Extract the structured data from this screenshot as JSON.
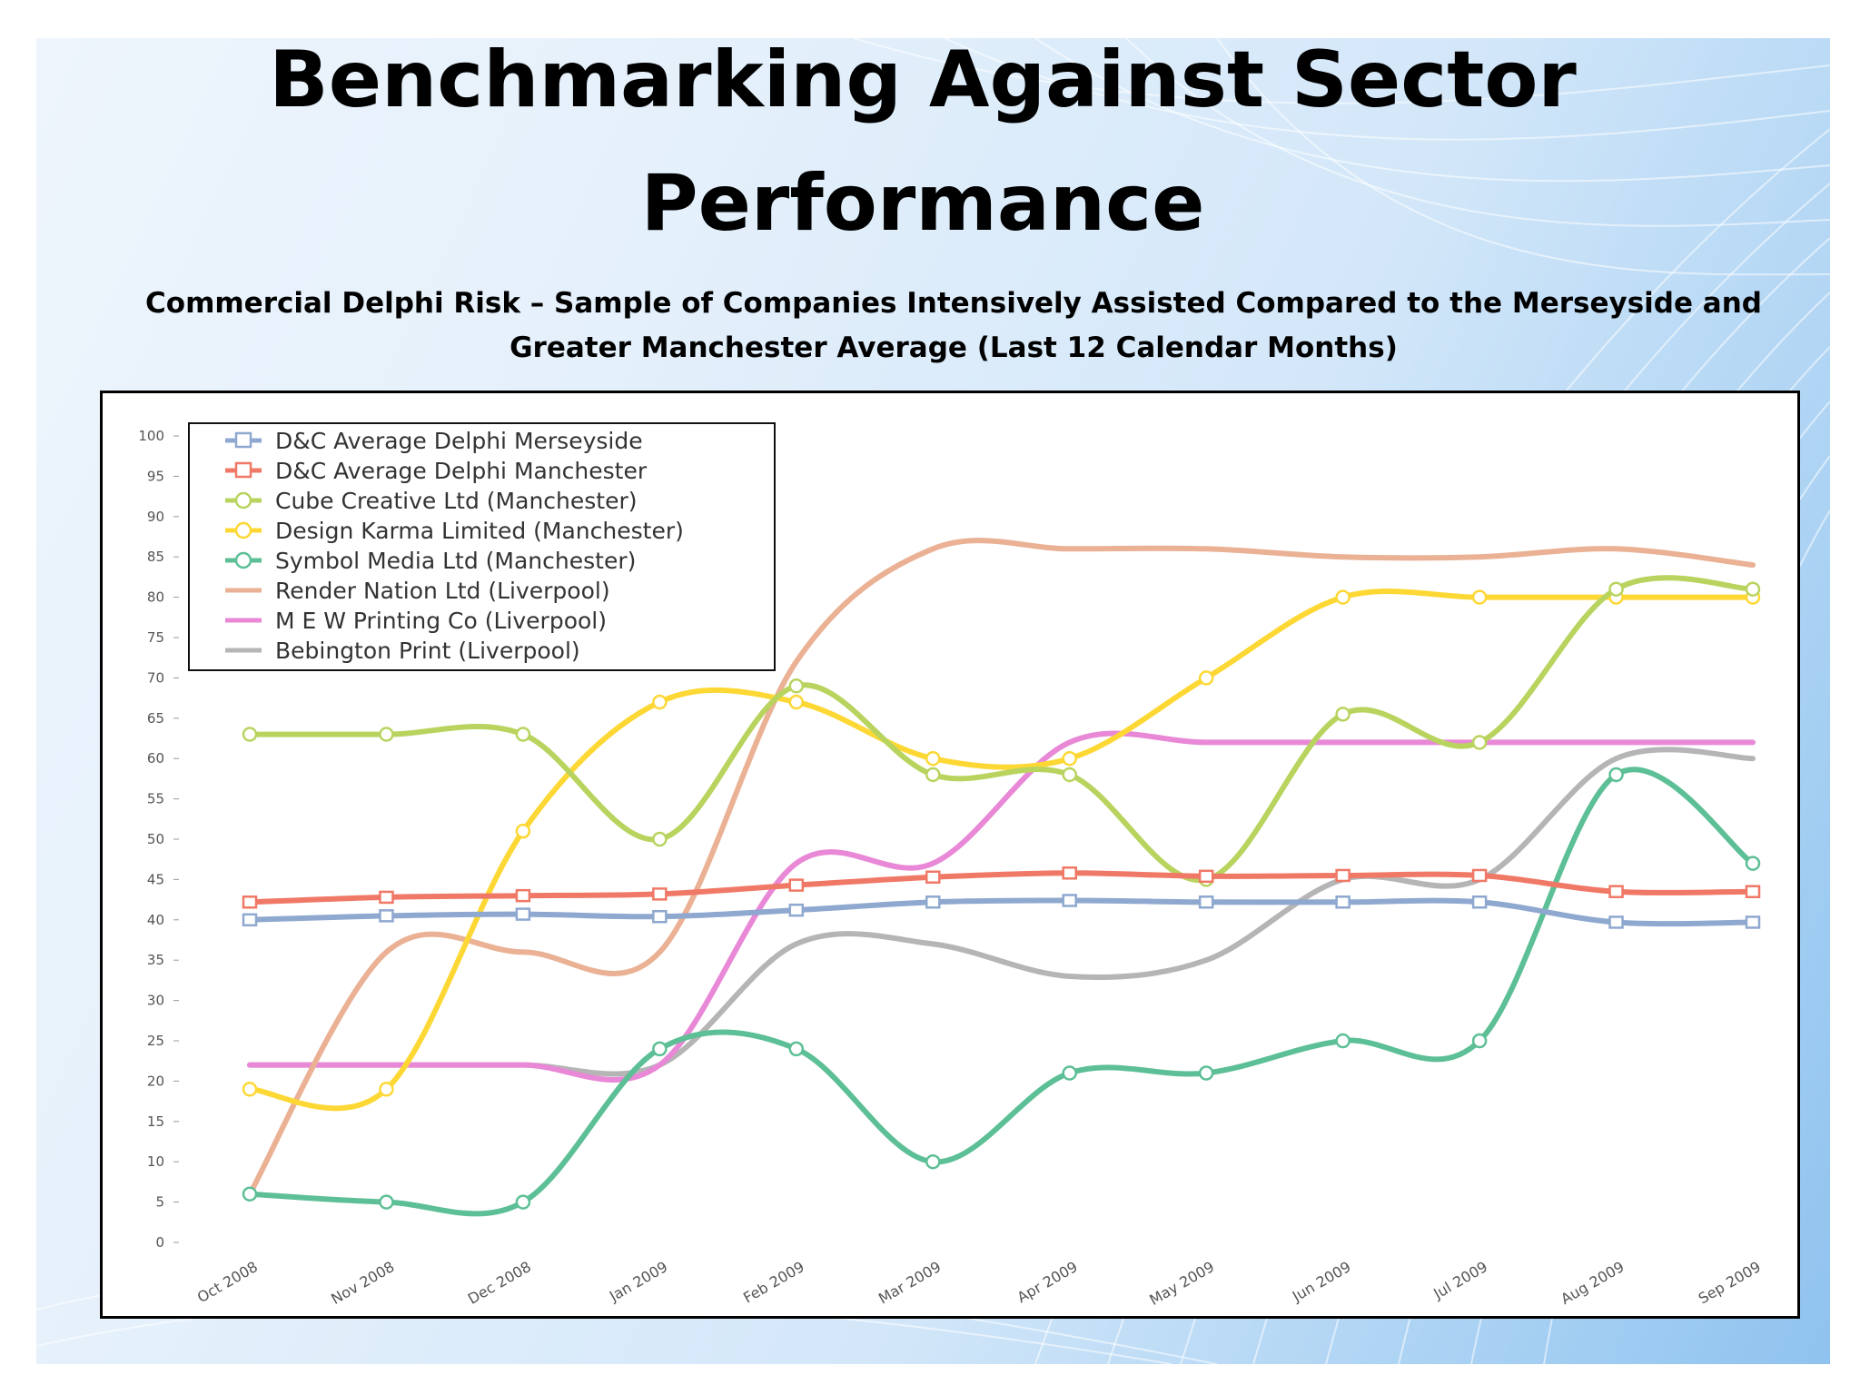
{
  "slide": {
    "title": "Benchmarking Against Sector Performance",
    "subtitle": "Commercial Delphi Risk – Sample of Companies Intensively Assisted Compared to the Merseyside and Greater Manchester Average (Last 12 Calendar Months)"
  },
  "chart_data": {
    "type": "line",
    "categories": [
      "Oct 2008",
      "Nov 2008",
      "Dec 2008",
      "Jan 2009",
      "Feb 2009",
      "Mar 2009",
      "Apr 2009",
      "May 2009",
      "Jun 2009",
      "Jul 2009",
      "Aug 2009",
      "Sep 2009"
    ],
    "ylim": [
      0,
      100
    ],
    "yticks": [
      0,
      5,
      10,
      15,
      20,
      25,
      30,
      35,
      40,
      45,
      50,
      55,
      60,
      65,
      70,
      75,
      80,
      85,
      90,
      95,
      100
    ],
    "grid": false,
    "legend_position": "top-left",
    "smooth": true,
    "series": [
      {
        "name": "D&C Average Delphi Merseyside",
        "color": "#8fa8cf",
        "marker": "square",
        "values": [
          40,
          40.5,
          40.7,
          40.4,
          41.2,
          42.2,
          42.4,
          42.2,
          42.2,
          42.2,
          39.7,
          39.7
        ]
      },
      {
        "name": "D&C Average Delphi Manchester",
        "color": "#f07866",
        "marker": "square",
        "values": [
          42.2,
          42.8,
          43,
          43.2,
          44.3,
          45.3,
          45.8,
          45.4,
          45.5,
          45.5,
          43.5,
          43.5
        ]
      },
      {
        "name": "Cube Creative Ltd (Manchester)",
        "color": "#b8d45e",
        "marker": "circle",
        "values": [
          63,
          63,
          63,
          50,
          69,
          58,
          58,
          45,
          65.5,
          62,
          81,
          81
        ]
      },
      {
        "name": "Design Karma Limited (Manchester)",
        "color": "#fdd835",
        "marker": "circle",
        "values": [
          19,
          19,
          51,
          67,
          67,
          60,
          60,
          70,
          80,
          80,
          80,
          80
        ]
      },
      {
        "name": "Symbol Media Ltd (Manchester)",
        "color": "#5cbf95",
        "marker": "circle",
        "values": [
          6,
          5,
          5,
          24,
          24,
          10,
          21,
          21,
          25,
          25,
          58,
          47
        ]
      },
      {
        "name": "Render Nation Ltd (Liverpool)",
        "color": "#eab194",
        "marker": "none",
        "values": [
          6,
          36,
          36,
          36,
          72,
          86,
          86,
          86,
          85,
          85,
          86,
          84
        ]
      },
      {
        "name": "M E W Printing Co (Liverpool)",
        "color": "#e888d6",
        "marker": "none",
        "values": [
          22,
          22,
          22,
          22,
          47,
          47,
          62,
          62,
          62,
          62,
          62,
          62
        ]
      },
      {
        "name": "Bebington Print (Liverpool)",
        "color": "#b5b5b5",
        "marker": "none",
        "values": [
          22,
          22,
          22,
          22,
          37,
          37,
          33,
          35,
          45,
          45,
          60,
          60
        ]
      }
    ]
  }
}
